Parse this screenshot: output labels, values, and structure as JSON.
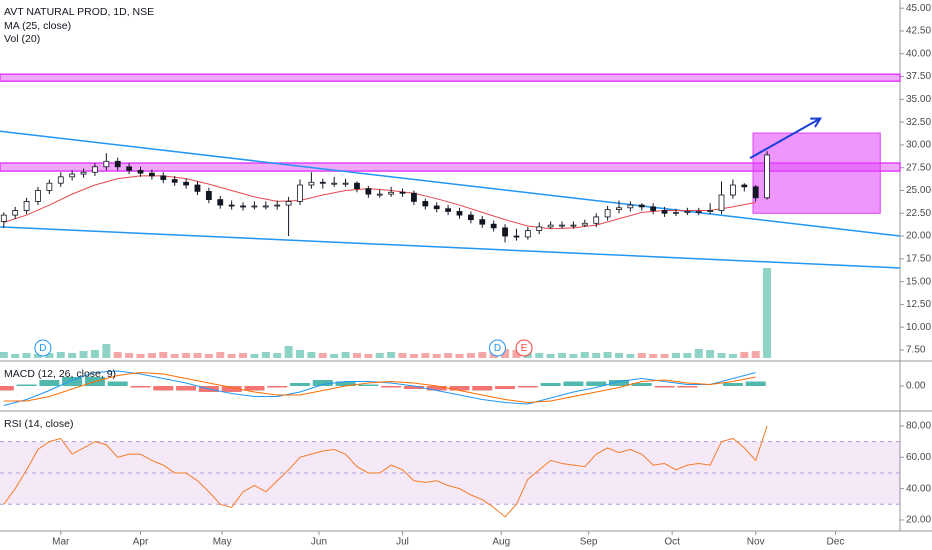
{
  "chart_data": [
    {
      "type": "candlestick",
      "title": "AVT NATURAL PROD, 1D, NSE",
      "indicators": [
        "MA (25, close)",
        "Vol (20)"
      ],
      "xlim": [
        -1,
        236
      ],
      "ylim": [
        6.4,
        45.9
      ],
      "yticks": [
        {
          "value": 45,
          "label": "45.00"
        },
        {
          "value": 42.5,
          "label": "42.50"
        },
        {
          "value": 40,
          "label": "40.00"
        },
        {
          "value": 37.5,
          "label": "37.50"
        },
        {
          "value": 35,
          "label": "35.00"
        },
        {
          "value": 32.5,
          "label": "32.50"
        },
        {
          "value": 30,
          "label": "30.00"
        },
        {
          "value": 27.5,
          "label": "27.50"
        },
        {
          "value": 25,
          "label": "25.00"
        },
        {
          "value": 22.5,
          "label": "22.50"
        },
        {
          "value": 20,
          "label": "20.00"
        },
        {
          "value": 17.5,
          "label": "17.50"
        },
        {
          "value": 15,
          "label": "15.00"
        },
        {
          "value": 12.5,
          "label": "12.50"
        },
        {
          "value": 10,
          "label": "10.00"
        },
        {
          "value": 7.5,
          "label": "7.50"
        }
      ],
      "x": [
        0,
        3,
        6,
        9,
        12,
        15,
        18,
        21,
        24,
        27,
        30,
        33,
        36,
        39,
        42,
        45,
        48,
        51,
        54,
        57,
        60,
        63,
        66,
        69,
        72,
        75,
        78,
        81,
        84,
        87,
        90,
        93,
        96,
        99,
        102,
        105,
        108,
        111,
        114,
        117,
        120,
        123,
        126,
        129,
        132,
        135,
        138,
        141,
        144,
        147,
        150,
        153,
        156,
        159,
        162,
        165,
        168,
        171,
        174,
        177,
        180,
        183,
        186,
        189,
        192,
        195,
        198,
        201
      ],
      "candles": [
        [
          21.6,
          22.6,
          20.9,
          22.3
        ],
        [
          22.3,
          23.2,
          21.9,
          22.8
        ],
        [
          22.8,
          24.2,
          22.4,
          23.8
        ],
        [
          23.8,
          25.4,
          23.4,
          25.0
        ],
        [
          25.0,
          26.2,
          24.6,
          25.8
        ],
        [
          25.8,
          27.0,
          25.4,
          26.5
        ],
        [
          26.5,
          27.2,
          26.1,
          26.8
        ],
        [
          26.8,
          27.4,
          26.4,
          27.0
        ],
        [
          27.0,
          28.0,
          26.6,
          27.6
        ],
        [
          27.6,
          29.1,
          27.2,
          28.2
        ],
        [
          28.2,
          28.6,
          27.2,
          27.6
        ],
        [
          27.6,
          28.0,
          26.8,
          27.2
        ],
        [
          27.2,
          27.6,
          26.5,
          26.9
        ],
        [
          26.9,
          27.3,
          26.2,
          26.6
        ],
        [
          26.6,
          27.0,
          25.8,
          26.2
        ],
        [
          26.2,
          26.6,
          25.5,
          25.9
        ],
        [
          25.9,
          26.3,
          25.2,
          25.6
        ],
        [
          25.6,
          26.0,
          24.5,
          24.9
        ],
        [
          24.9,
          25.3,
          23.6,
          24.0
        ],
        [
          24.0,
          24.4,
          23.0,
          23.4
        ],
        [
          23.4,
          23.9,
          22.9,
          23.3
        ],
        [
          23.3,
          23.7,
          22.8,
          23.2
        ],
        [
          23.2,
          23.8,
          22.9,
          23.3
        ],
        [
          23.3,
          23.8,
          22.9,
          23.3
        ],
        [
          23.3,
          23.9,
          22.9,
          23.4
        ],
        [
          23.4,
          24.3,
          20.0,
          23.8
        ],
        [
          23.8,
          26.2,
          23.4,
          25.6
        ],
        [
          25.6,
          27.0,
          25.2,
          25.9
        ],
        [
          25.9,
          26.3,
          25.2,
          25.8
        ],
        [
          25.8,
          26.5,
          25.4,
          25.8
        ],
        [
          25.8,
          26.3,
          25.4,
          25.8
        ],
        [
          25.8,
          26.0,
          24.8,
          25.2
        ],
        [
          25.2,
          25.5,
          24.2,
          24.6
        ],
        [
          24.6,
          25.1,
          24.2,
          24.6
        ],
        [
          24.6,
          25.4,
          24.3,
          24.8
        ],
        [
          24.8,
          25.2,
          24.3,
          24.7
        ],
        [
          24.7,
          25.0,
          23.4,
          23.8
        ],
        [
          23.8,
          24.1,
          22.9,
          23.3
        ],
        [
          23.3,
          23.7,
          22.6,
          23.0
        ],
        [
          23.0,
          23.4,
          22.3,
          22.7
        ],
        [
          22.7,
          23.1,
          21.9,
          22.3
        ],
        [
          22.3,
          22.7,
          21.4,
          21.8
        ],
        [
          21.8,
          22.2,
          20.9,
          21.3
        ],
        [
          21.3,
          21.7,
          20.5,
          20.9
        ],
        [
          20.9,
          21.3,
          19.3,
          20.0
        ],
        [
          20.0,
          20.8,
          19.5,
          19.9
        ],
        [
          19.9,
          21.0,
          19.6,
          20.6
        ],
        [
          20.6,
          21.5,
          20.2,
          21.0
        ],
        [
          21.0,
          21.6,
          20.8,
          21.2
        ],
        [
          21.2,
          21.6,
          20.8,
          21.2
        ],
        [
          21.2,
          21.6,
          20.8,
          21.2
        ],
        [
          21.2,
          21.8,
          21.0,
          21.4
        ],
        [
          21.4,
          22.5,
          21.0,
          22.1
        ],
        [
          22.1,
          23.3,
          21.7,
          22.9
        ],
        [
          22.9,
          23.9,
          22.5,
          23.1
        ],
        [
          23.1,
          23.8,
          22.7,
          23.4
        ],
        [
          23.4,
          23.6,
          22.8,
          23.2
        ],
        [
          23.2,
          23.6,
          22.4,
          22.8
        ],
        [
          22.8,
          23.2,
          22.1,
          22.5
        ],
        [
          22.5,
          23.0,
          22.2,
          22.6
        ],
        [
          22.6,
          23.1,
          22.3,
          22.7
        ],
        [
          22.7,
          23.1,
          22.3,
          22.7
        ],
        [
          22.7,
          23.6,
          22.4,
          22.8
        ],
        [
          22.8,
          26.0,
          22.4,
          24.5
        ],
        [
          24.5,
          26.2,
          24.1,
          25.6
        ],
        [
          25.6,
          25.8,
          24.9,
          25.4
        ],
        [
          25.4,
          25.6,
          23.8,
          24.2
        ],
        [
          24.2,
          29.3,
          24.0,
          28.9
        ]
      ],
      "up_color": "#ffffff",
      "down_color": "#131722",
      "wick_color": "#131722",
      "volume": [
        6,
        4,
        5,
        4,
        5,
        6,
        5,
        7,
        8,
        14,
        6,
        5,
        4,
        5,
        6,
        4,
        5,
        5,
        4,
        6,
        4,
        5,
        4,
        6,
        5,
        12,
        8,
        6,
        5,
        4,
        6,
        5,
        4,
        5,
        6,
        5,
        4,
        5,
        4,
        5,
        4,
        5,
        6,
        7,
        9,
        8,
        6,
        5,
        4,
        5,
        4,
        6,
        5,
        6,
        5,
        4,
        5,
        4,
        4,
        5,
        5,
        9,
        8,
        5,
        4,
        6,
        7,
        90
      ],
      "vlim": [
        0,
        100
      ],
      "volume_up_color": "#8fd3c6",
      "volume_down_color": "#f5a6a6",
      "ma": {
        "color": "#e5484d",
        "x": [
          0,
          6,
          12,
          18,
          24,
          30,
          36,
          42,
          48,
          54,
          60,
          66,
          72,
          78,
          84,
          90,
          96,
          102,
          108,
          114,
          120,
          126,
          132,
          138,
          144,
          150,
          156,
          162,
          168,
          174,
          180,
          186,
          192,
          198
        ],
        "values": [
          21.5,
          22.3,
          23.4,
          24.6,
          25.6,
          26.3,
          26.6,
          26.6,
          26.3,
          25.7,
          25.0,
          24.3,
          23.8,
          23.9,
          24.5,
          25.0,
          25.2,
          25.0,
          24.7,
          24.1,
          23.4,
          22.6,
          21.8,
          21.1,
          20.8,
          20.9,
          21.2,
          21.9,
          22.6,
          22.8,
          22.8,
          22.8,
          23.2,
          23.7
        ]
      },
      "zones": [
        {
          "from": 37.1,
          "to": 37.65
        },
        {
          "from": 27.24,
          "to": 27.9
        }
      ],
      "zone_color": "#e040fb",
      "trendlines": [
        [
          [
            -1,
            31.5
          ],
          [
            236,
            20.0
          ]
        ],
        [
          [
            -1,
            21.0
          ],
          [
            236,
            16.5
          ]
        ]
      ],
      "trendline_color": "#2196f3",
      "box": {
        "x": [
          197.3,
          230.8
        ],
        "y": [
          22.5,
          31.3
        ]
      },
      "arrow": [
        [
          196.5,
          28.55
        ],
        [
          215,
          32.9
        ]
      ],
      "arrow_color": "#1a3ed8",
      "events": [
        {
          "label": "D",
          "x": 10.3,
          "color": "#2196f3"
        },
        {
          "label": "D",
          "x": 130,
          "color": "#2196f3"
        },
        {
          "label": "E",
          "x": 137,
          "color": "#f44336"
        }
      ]
    },
    {
      "type": "macd",
      "title": "MACD (12, 26, close, 9)",
      "xlim": [
        -1,
        236
      ],
      "ylim": [
        -1.6,
        1.6
      ],
      "yticks": [
        {
          "value": 0,
          "label": "0.00"
        }
      ],
      "x": [
        0,
        6,
        12,
        18,
        24,
        30,
        36,
        42,
        48,
        54,
        60,
        66,
        72,
        78,
        84,
        90,
        96,
        102,
        108,
        114,
        120,
        126,
        132,
        138,
        144,
        150,
        156,
        162,
        168,
        174,
        180,
        186,
        192,
        198
      ],
      "series": [
        {
          "type": "bar",
          "color": "#26a69a",
          "neg_color": "#ef5350",
          "values": [
            -0.3,
            0.1,
            0.4,
            0.6,
            0.6,
            0.3,
            -0.1,
            -0.3,
            -0.3,
            -0.4,
            -0.4,
            -0.3,
            -0.1,
            0.2,
            0.4,
            0.3,
            0.1,
            -0.1,
            -0.2,
            -0.3,
            -0.3,
            -0.3,
            -0.2,
            -0.1,
            0.2,
            0.3,
            0.3,
            0.4,
            0.2,
            -0.1,
            -0.1,
            0.0,
            0.2,
            0.3
          ]
        },
        {
          "type": "line",
          "color": "#2196f3",
          "values": [
            -1.3,
            -0.9,
            -0.3,
            0.4,
            0.9,
            1.0,
            0.8,
            0.5,
            0.2,
            -0.2,
            -0.5,
            -0.7,
            -0.7,
            -0.4,
            0.1,
            0.3,
            0.3,
            0.2,
            0.0,
            -0.3,
            -0.6,
            -0.9,
            -1.1,
            -1.2,
            -0.8,
            -0.4,
            -0.1,
            0.3,
            0.5,
            0.3,
            0.1,
            0.1,
            0.5,
            0.9
          ]
        },
        {
          "type": "line",
          "color": "#ff6d00",
          "values": [
            -1.0,
            -1.0,
            -0.7,
            -0.2,
            0.3,
            0.7,
            0.9,
            0.8,
            0.5,
            0.2,
            -0.1,
            -0.4,
            -0.6,
            -0.6,
            -0.3,
            0.0,
            0.2,
            0.3,
            0.2,
            0.0,
            -0.3,
            -0.6,
            -0.9,
            -1.1,
            -1.0,
            -0.7,
            -0.4,
            -0.1,
            0.3,
            0.4,
            0.2,
            0.1,
            0.3,
            0.6
          ]
        }
      ]
    },
    {
      "type": "rsi",
      "title": "RSI (14, close)",
      "xlim": [
        -1,
        236
      ],
      "ylim": [
        13.6,
        88.9
      ],
      "yticks": [
        {
          "value": 80,
          "label": "80.00"
        },
        {
          "value": 60,
          "label": "60.00"
        },
        {
          "value": 40,
          "label": "40.00"
        },
        {
          "value": 20,
          "label": "20.00"
        }
      ],
      "band": [
        30,
        70
      ],
      "band_color": "#9c27b0",
      "levels": [
        70,
        50,
        30
      ],
      "color": "#f57c2a",
      "x": [
        0,
        3,
        6,
        9,
        12,
        15,
        18,
        21,
        24,
        27,
        30,
        33,
        36,
        39,
        42,
        45,
        48,
        51,
        54,
        57,
        60,
        63,
        66,
        69,
        72,
        75,
        78,
        81,
        84,
        87,
        90,
        93,
        96,
        99,
        102,
        105,
        108,
        111,
        114,
        117,
        120,
        123,
        126,
        129,
        132,
        135,
        138,
        141,
        144,
        147,
        150,
        153,
        156,
        159,
        162,
        165,
        168,
        171,
        174,
        177,
        180,
        183,
        186,
        189,
        192,
        195,
        198,
        201
      ],
      "values": [
        30,
        40,
        52,
        65,
        70,
        72,
        62,
        66,
        70,
        68,
        60,
        62,
        62,
        58,
        55,
        50,
        50,
        45,
        38,
        30,
        28,
        38,
        42,
        38,
        45,
        52,
        60,
        62,
        64,
        65,
        62,
        54,
        50,
        50,
        55,
        52,
        45,
        44,
        45,
        42,
        40,
        36,
        33,
        28,
        22,
        30,
        46,
        52,
        58,
        56,
        55,
        54,
        62,
        66,
        63,
        65,
        62,
        55,
        56,
        52,
        55,
        56,
        55,
        70,
        72,
        66,
        58,
        80
      ],
      "xticks": [
        {
          "value": 15,
          "label": "Mar"
        },
        {
          "value": 36,
          "label": "Apr"
        },
        {
          "value": 57.5,
          "label": "May"
        },
        {
          "value": 83,
          "label": "Jun"
        },
        {
          "value": 105,
          "label": "Jul"
        },
        {
          "value": 131,
          "label": "Aug"
        },
        {
          "value": 154,
          "label": "Sep"
        },
        {
          "value": 176,
          "label": "Oct"
        },
        {
          "value": 198,
          "label": "Nov"
        },
        {
          "value": 219,
          "label": "Dec"
        }
      ]
    }
  ]
}
